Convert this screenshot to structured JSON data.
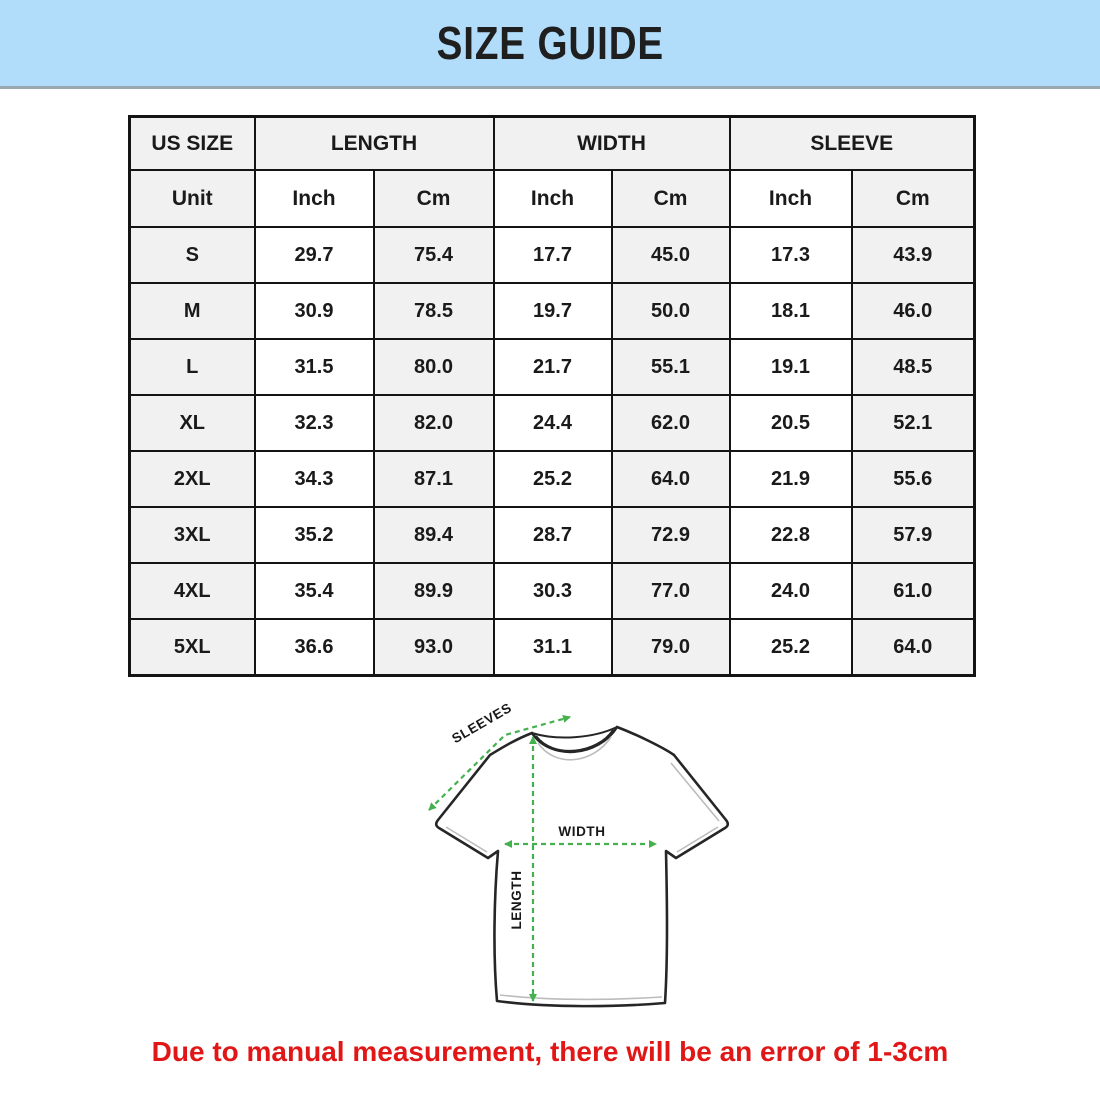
{
  "header": {
    "title": "SIZE GUIDE",
    "bg_color": "#b1dcfa"
  },
  "table": {
    "group_headers": [
      "US SIZE",
      "LENGTH",
      "WIDTH",
      "SLEEVE"
    ],
    "unit_row": [
      "Unit",
      "Inch",
      "Cm",
      "Inch",
      "Cm",
      "Inch",
      "Cm"
    ],
    "rows": [
      {
        "size": "S",
        "cells": [
          "29.7",
          "75.4",
          "17.7",
          "45.0",
          "17.3",
          "43.9"
        ]
      },
      {
        "size": "M",
        "cells": [
          "30.9",
          "78.5",
          "19.7",
          "50.0",
          "18.1",
          "46.0"
        ]
      },
      {
        "size": "L",
        "cells": [
          "31.5",
          "80.0",
          "21.7",
          "55.1",
          "19.1",
          "48.5"
        ]
      },
      {
        "size": "XL",
        "cells": [
          "32.3",
          "82.0",
          "24.4",
          "62.0",
          "20.5",
          "52.1"
        ]
      },
      {
        "size": "2XL",
        "cells": [
          "34.3",
          "87.1",
          "25.2",
          "64.0",
          "21.9",
          "55.6"
        ]
      },
      {
        "size": "3XL",
        "cells": [
          "35.2",
          "89.4",
          "28.7",
          "72.9",
          "22.8",
          "57.9"
        ]
      },
      {
        "size": "4XL",
        "cells": [
          "35.4",
          "89.9",
          "30.3",
          "77.0",
          "24.0",
          "61.0"
        ]
      },
      {
        "size": "5XL",
        "cells": [
          "36.6",
          "93.0",
          "31.1",
          "79.0",
          "25.2",
          "64.0"
        ]
      }
    ]
  },
  "diagram": {
    "labels": {
      "sleeves": "SLEEVES",
      "width": "WIDTH",
      "length": "LENGTH"
    },
    "arrow_color": "#45b14e"
  },
  "footer": {
    "note": "Due to manual measurement, there will be an error of 1-3cm",
    "color": "#e11717"
  }
}
